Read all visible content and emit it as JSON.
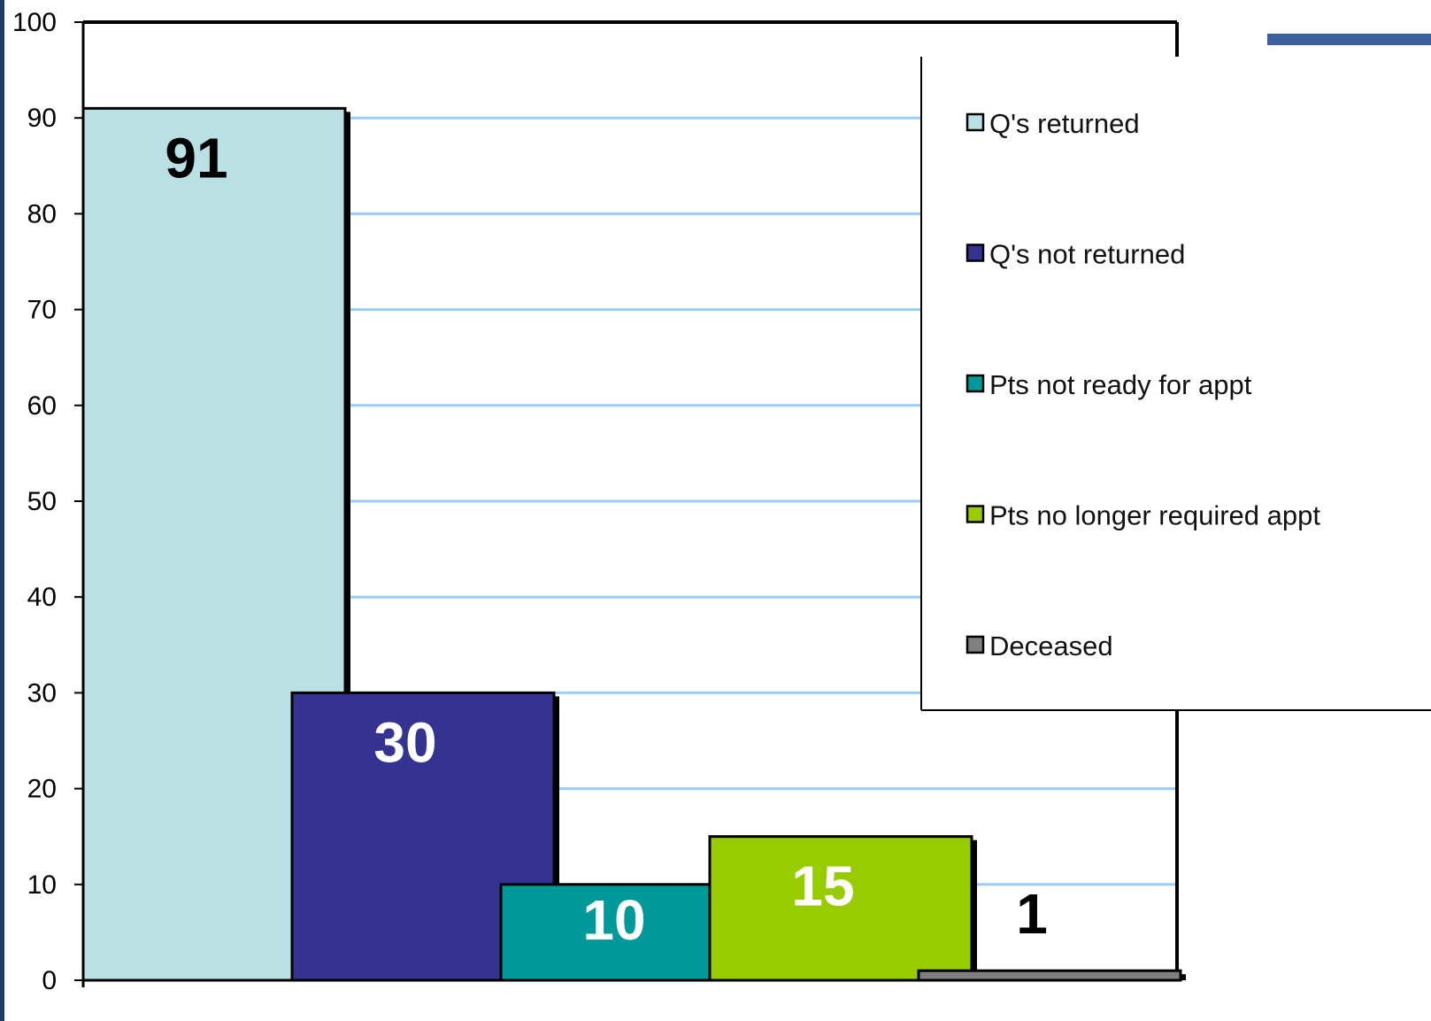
{
  "chart_data": {
    "type": "bar",
    "categories": [
      "Q's returned",
      "Q's not returned",
      "Pts not ready for appt",
      "Pts no longer required appt",
      "Deceased"
    ],
    "values": [
      91,
      30,
      10,
      15,
      1
    ],
    "value_labels": [
      "91",
      "30",
      "10",
      "15",
      "1"
    ],
    "colors": [
      "#b9e0e3",
      "#343392",
      "#009999",
      "#99cc00",
      "#808080"
    ],
    "value_label_colors": [
      "#000000",
      "#ffffff",
      "#ffffff",
      "#ffffff",
      "#000000"
    ],
    "ylim": [
      0,
      100
    ],
    "yticks": [
      0,
      10,
      20,
      30,
      40,
      50,
      60,
      70,
      80,
      90,
      100
    ],
    "ytick_labels": [
      "0",
      "10",
      "20",
      "30",
      "40",
      "50",
      "60",
      "70",
      "80",
      "90",
      "100"
    ],
    "grid": true,
    "grid_color": "#99ccff",
    "legend": {
      "position": "right",
      "entries": [
        "Q's returned",
        "Q's not returned",
        "Pts not ready for appt",
        "Pts no longer required appt",
        "Deceased"
      ]
    },
    "style": "overlapping 3D-style step bars",
    "title": "",
    "xlabel": "",
    "ylabel": ""
  }
}
